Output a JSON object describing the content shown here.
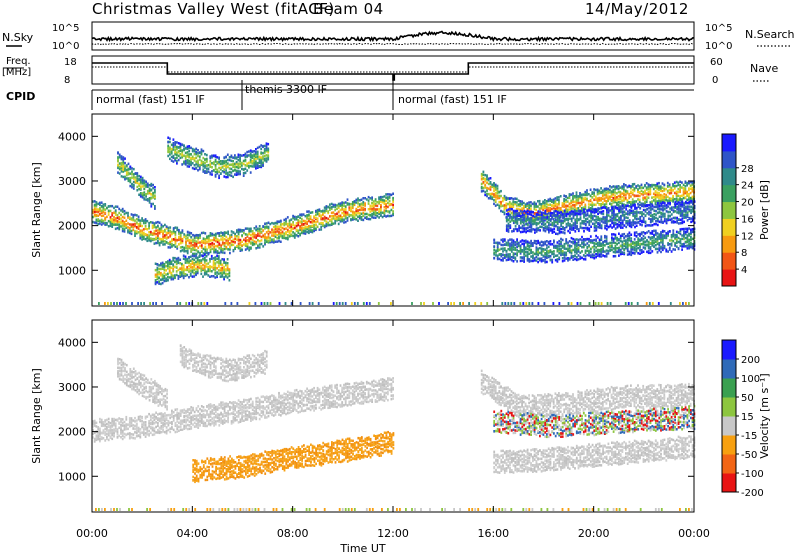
{
  "header": {
    "station": "Christmas Valley West (fitACF)",
    "beam": "Beam 04",
    "date": "14/May/2012"
  },
  "aux_panels": {
    "nsky_label": "N.Sky",
    "nsearch_label": "N.Search",
    "nsky_ticks": [
      "10^5",
      "10^0"
    ],
    "nsearch_ticks": [
      "10^5",
      "10^0"
    ],
    "freq_label_1": "Freq.",
    "freq_label_2": "[MHz]",
    "freq_ticks": [
      "18",
      "8"
    ],
    "nave_label": "Nave",
    "nave_ticks": [
      "60",
      "0"
    ],
    "cpid_label": "CPID",
    "cpid_segments": [
      {
        "label": "normal (fast) 151 IF",
        "start": 0,
        "end": 6
      },
      {
        "label": "themis 3300 IF",
        "start": 6,
        "end": 12
      },
      {
        "label": "normal (fast) 151 IF",
        "start": 12,
        "end": 24
      }
    ]
  },
  "chart_data": [
    {
      "type": "heatmap",
      "panel": "power",
      "ylabel": "Slant Range [km]",
      "xlim": [
        0,
        24
      ],
      "ylim": [
        200,
        4500
      ],
      "yticks": [
        "1000",
        "2000",
        "3000",
        "4000"
      ],
      "colorbar": {
        "label": "Power [dB]",
        "ticks": [
          "4",
          "8",
          "12",
          "16",
          "20",
          "24",
          "28"
        ],
        "colors": [
          "#1a1aff",
          "#2f55c8",
          "#2f8a8a",
          "#3aa060",
          "#8dc63f",
          "#f0d020",
          "#f79a10",
          "#f25515",
          "#e81414"
        ]
      },
      "bands": [
        {
          "t": [
            0.0,
            1.0,
            2.0,
            3.0,
            4.0,
            6.0,
            8.0,
            10.0,
            12.0
          ],
          "r": [
            2300,
            2150,
            1900,
            1750,
            1550,
            1650,
            1950,
            2300,
            2450
          ],
          "level": 0.85
        },
        {
          "t": [
            1.0,
            1.5,
            2.0,
            2.5
          ],
          "r": [
            3400,
            3100,
            2800,
            2600
          ],
          "level": 0.6
        },
        {
          "t": [
            3.0,
            4.0,
            5.0,
            6.0,
            7.0
          ],
          "r": [
            3700,
            3500,
            3300,
            3350,
            3600
          ],
          "level": 0.55
        },
        {
          "t": [
            2.5,
            3.5,
            4.5,
            5.5
          ],
          "r": [
            900,
            1050,
            1100,
            1000
          ],
          "level": 0.7
        },
        {
          "t": [
            15.5,
            16.5,
            17.5,
            19.0,
            21.0,
            23.0,
            24.0
          ],
          "r": [
            3000,
            2400,
            2250,
            2450,
            2650,
            2700,
            2750
          ],
          "level": 0.8
        },
        {
          "t": [
            16.0,
            18.0,
            20.0,
            22.0,
            24.0
          ],
          "r": [
            1450,
            1400,
            1500,
            1600,
            1700
          ],
          "level": 0.4
        },
        {
          "t": [
            16.5,
            18.5,
            20.5,
            22.5,
            24.0
          ],
          "r": [
            2100,
            2050,
            2150,
            2250,
            2300
          ],
          "level": 0.3
        }
      ]
    },
    {
      "type": "heatmap",
      "panel": "velocity",
      "ylabel": "Slant Range [km]",
      "xlabel": "Time UT",
      "xlim": [
        0,
        24
      ],
      "ylim": [
        200,
        4500
      ],
      "yticks": [
        "1000",
        "2000",
        "3000",
        "4000"
      ],
      "xticks": [
        "00:00",
        "04:00",
        "08:00",
        "12:00",
        "16:00",
        "20:00",
        "00:00"
      ],
      "xtick_values": [
        0,
        4,
        8,
        12,
        16,
        20,
        24
      ],
      "colorbar": {
        "label": "Velocity [m s⁻¹]",
        "ticks": [
          "200",
          "100",
          "50",
          "15",
          "-15",
          "-50",
          "-100",
          "-200"
        ],
        "colors": [
          "#1a1aff",
          "#2f6ab8",
          "#3aa050",
          "#8dc63f",
          "#c8c8c8",
          "#f7a010",
          "#f26515",
          "#e81414"
        ]
      },
      "bands": [
        {
          "t": [
            0.0,
            2.0,
            4.0,
            6.0,
            8.0,
            10.0,
            12.0
          ],
          "r": [
            2000,
            2100,
            2300,
            2450,
            2650,
            2800,
            2950
          ],
          "kind": "gray"
        },
        {
          "t": [
            1.0,
            2.0,
            3.0
          ],
          "r": [
            3400,
            3000,
            2700
          ],
          "kind": "gray"
        },
        {
          "t": [
            3.5,
            4.5,
            5.5,
            7.0
          ],
          "r": [
            3700,
            3450,
            3350,
            3550
          ],
          "kind": "gray"
        },
        {
          "t": [
            4.0,
            6.0,
            8.0,
            10.0,
            12.0
          ],
          "r": [
            1100,
            1200,
            1400,
            1550,
            1750
          ],
          "kind": "orange"
        },
        {
          "t": [
            15.5,
            17.0,
            19.0,
            21.0,
            24.0
          ],
          "r": [
            3100,
            2550,
            2600,
            2750,
            2800
          ],
          "kind": "gray"
        },
        {
          "t": [
            16.0,
            18.0,
            20.0,
            22.0,
            24.0
          ],
          "r": [
            1300,
            1350,
            1450,
            1550,
            1650
          ],
          "kind": "gray"
        },
        {
          "t": [
            16.0,
            18.5,
            21.0,
            24.0
          ],
          "r": [
            2200,
            2100,
            2200,
            2300
          ],
          "kind": "blue"
        }
      ]
    }
  ]
}
